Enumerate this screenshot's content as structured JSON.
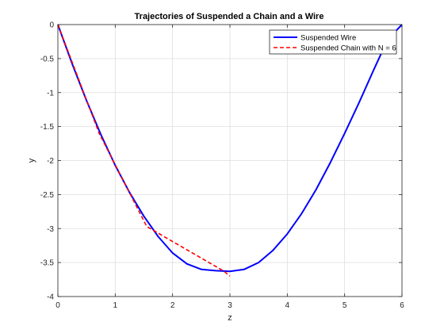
{
  "chart_data": {
    "type": "line",
    "title": "Trajectories of Suspended a Chain and a Wire",
    "xlabel": "z",
    "ylabel": "y",
    "xlim": [
      0,
      6
    ],
    "ylim": [
      -4,
      0
    ],
    "xticks": [
      0,
      1,
      2,
      3,
      4,
      5,
      6
    ],
    "xtick_labels": [
      "0",
      "1",
      "2",
      "3",
      "4",
      "5",
      "6"
    ],
    "yticks": [
      0,
      -0.5,
      -1,
      -1.5,
      -2,
      -2.5,
      -3,
      -3.5,
      -4
    ],
    "ytick_labels": [
      "0",
      "-0.5",
      "-1",
      "-1.5",
      "-2",
      "-2.5",
      "-3",
      "-3.5",
      "-4"
    ],
    "grid": true,
    "legend_position": "top-right",
    "series": [
      {
        "name": "Suspended Wire",
        "color": "#0000ff",
        "style": "solid",
        "x": [
          0,
          0.25,
          0.5,
          0.75,
          1.0,
          1.25,
          1.5,
          1.75,
          2.0,
          2.25,
          2.5,
          2.75,
          3.0,
          3.25,
          3.5,
          3.75,
          4.0,
          4.25,
          4.5,
          4.75,
          5.0,
          5.25,
          5.5,
          5.75,
          6.0
        ],
        "y": [
          0,
          -0.58,
          -1.12,
          -1.62,
          -2.07,
          -2.47,
          -2.82,
          -3.12,
          -3.36,
          -3.52,
          -3.6,
          -3.62,
          -3.63,
          -3.6,
          -3.5,
          -3.32,
          -3.08,
          -2.78,
          -2.43,
          -2.03,
          -1.6,
          -1.15,
          -0.68,
          -0.22,
          0
        ]
      },
      {
        "name": "Suspended Chain with N = 6",
        "color": "#ff0000",
        "style": "dashed",
        "x": [
          0,
          0.72,
          1.55,
          2.9,
          3.0
        ],
        "y": [
          0,
          -1.6,
          -2.97,
          -3.63,
          -3.7
        ]
      }
    ]
  }
}
